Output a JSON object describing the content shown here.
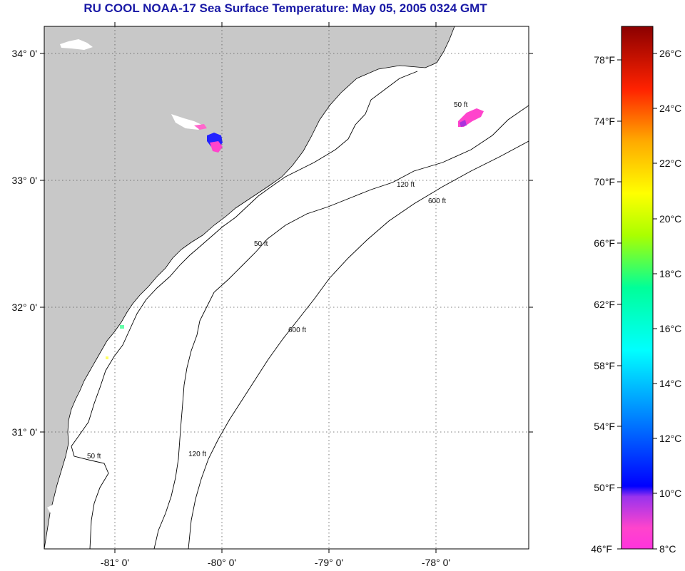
{
  "title": "RU COOL  NOAA-17  Sea Surface Temperature:  May 05, 2005 0324 GMT",
  "colors": {
    "title": "#1a1aa6",
    "land": "#c8c8c8",
    "ocean": "#ffffff",
    "grid": "#555555",
    "contour": "#000000"
  },
  "map": {
    "lat_labels": [
      "34° 0'",
      "33° 0'",
      "32° 0'",
      "31° 0'"
    ],
    "lon_labels": [
      "-81° 0'",
      "-80° 0'",
      "-79° 0'",
      "-78° 0'"
    ],
    "contour_labels": [
      "50 ft",
      "120 ft",
      "600 ft"
    ]
  },
  "colorbar": {
    "fahrenheit": [
      "78°F",
      "74°F",
      "70°F",
      "66°F",
      "62°F",
      "58°F",
      "54°F",
      "50°F",
      "46°F"
    ],
    "celsius": [
      "26°C",
      "24°C",
      "22°C",
      "20°C",
      "18°C",
      "16°C",
      "14°C",
      "12°C",
      "10°C",
      "8°C"
    ]
  }
}
